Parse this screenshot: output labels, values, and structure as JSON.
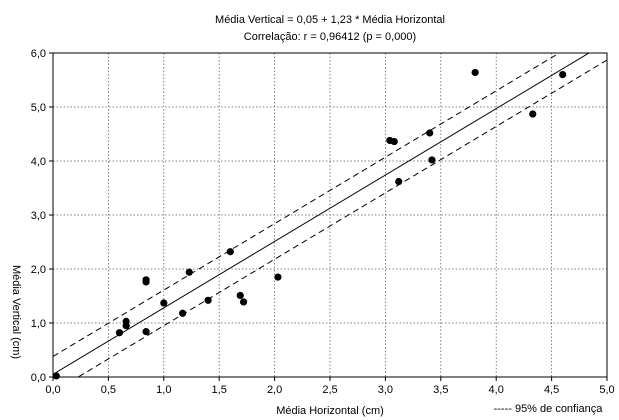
{
  "chart_data": {
    "type": "scatter",
    "title": "Média Vertical = 0,05 + 1,23 * Média Horizontal",
    "subtitle": "Correlação: r = 0,96412 (p = 0,000)",
    "xlabel": "Média Horizontal (cm)",
    "ylabel": "Média Vertical (cm)",
    "xlim": [
      0,
      5
    ],
    "ylim": [
      0,
      6
    ],
    "xticks": [
      0,
      0.5,
      1,
      1.5,
      2,
      2.5,
      3,
      3.5,
      4,
      4.5,
      5
    ],
    "yticks": [
      0,
      1,
      2,
      3,
      4,
      5,
      6
    ],
    "xtick_labels": [
      "0,0",
      "0,5",
      "1,0",
      "1,5",
      "2,0",
      "2,5",
      "3,0",
      "3,5",
      "4,0",
      "4,5",
      "5,0"
    ],
    "ytick_labels": [
      "0,0",
      "1,0",
      "2,0",
      "3,0",
      "4,0",
      "5,0",
      "6,0"
    ],
    "grid": true,
    "legend_label": "----- 95% de confiança",
    "legend_position": "bottom-right",
    "regression": {
      "intercept": 0.05,
      "slope": 1.23
    },
    "confidence_band": {
      "offset": 0.33
    },
    "points": [
      {
        "x": 0.03,
        "y": 0.02
      },
      {
        "x": 0.6,
        "y": 0.82
      },
      {
        "x": 0.66,
        "y": 0.95
      },
      {
        "x": 0.66,
        "y": 1.03
      },
      {
        "x": 0.84,
        "y": 0.84
      },
      {
        "x": 0.84,
        "y": 1.76
      },
      {
        "x": 0.84,
        "y": 1.8
      },
      {
        "x": 1.0,
        "y": 1.37
      },
      {
        "x": 1.17,
        "y": 1.18
      },
      {
        "x": 1.23,
        "y": 1.94
      },
      {
        "x": 1.4,
        "y": 1.42
      },
      {
        "x": 1.6,
        "y": 2.32
      },
      {
        "x": 1.69,
        "y": 1.51
      },
      {
        "x": 1.72,
        "y": 1.39
      },
      {
        "x": 2.03,
        "y": 1.85
      },
      {
        "x": 3.04,
        "y": 4.38
      },
      {
        "x": 3.08,
        "y": 4.36
      },
      {
        "x": 3.12,
        "y": 3.62
      },
      {
        "x": 3.4,
        "y": 4.52
      },
      {
        "x": 3.42,
        "y": 4.02
      },
      {
        "x": 3.81,
        "y": 5.64
      },
      {
        "x": 4.33,
        "y": 4.87
      },
      {
        "x": 4.6,
        "y": 5.6
      }
    ]
  }
}
